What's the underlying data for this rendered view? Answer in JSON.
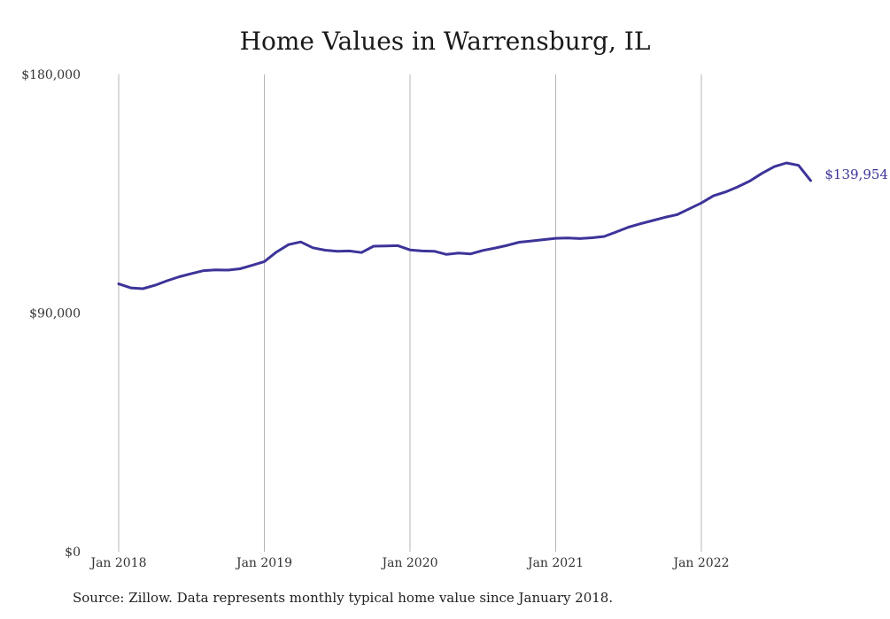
{
  "chart_data": {
    "type": "line",
    "title": "Home Values in Warrensburg, IL",
    "xlabel": "",
    "ylabel": "",
    "ylim": [
      0,
      180000
    ],
    "y_ticks": [
      "$0",
      "$90,000",
      "$180,000"
    ],
    "y_tick_values": [
      0,
      90000,
      180000
    ],
    "x_ticks": [
      "Jan 2018",
      "Jan 2019",
      "Jan 2020",
      "Jan 2021",
      "Jan 2022"
    ],
    "x_tick_months": [
      0,
      12,
      24,
      36,
      48
    ],
    "grid": "vertical",
    "legend": "none",
    "x_start": "Jan 2018",
    "series": [
      {
        "color": "#3c3499",
        "values": [
          101000,
          99500,
          99200,
          100500,
          102200,
          103700,
          104900,
          106000,
          106300,
          106200,
          106700,
          108000,
          109400,
          113000,
          115800,
          116800,
          114600,
          113700,
          113300,
          113400,
          112800,
          115200,
          115300,
          115400,
          113800,
          113400,
          113300,
          112100,
          112600,
          112300,
          113600,
          114500,
          115500,
          116700,
          117200,
          117700,
          118200,
          118300,
          118100,
          118400,
          118900,
          120600,
          122400,
          123700,
          124900,
          126100,
          127100,
          129300,
          131500,
          134200,
          135700,
          137600,
          139800,
          142700,
          145200,
          146600,
          145700,
          139954
        ]
      }
    ],
    "end_label": "$139,954"
  },
  "footer": {
    "source": "Source: Zillow. Data represents monthly typical home value since January 2018."
  }
}
